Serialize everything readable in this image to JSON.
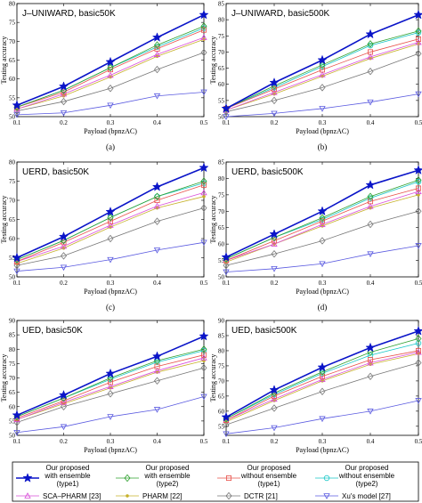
{
  "chart_data": {
    "type": "line",
    "x": [
      0.1,
      0.2,
      0.3,
      0.4,
      0.5
    ],
    "xlabel": "Payload (bpnzAC)",
    "ylabel": "Testing accuracy",
    "xticks": [
      "0.1",
      "0.2",
      "0.3",
      "0.4",
      "0.5"
    ],
    "series_styles": [
      {
        "key": "ours_ens1",
        "color": "#0a14c8",
        "marker": "star",
        "lw": 1.6
      },
      {
        "key": "ours_ens2",
        "color": "#2ea02e",
        "marker": "diamond",
        "lw": 0.8
      },
      {
        "key": "ours_noens1",
        "color": "#e8504a",
        "marker": "square",
        "lw": 0.8
      },
      {
        "key": "ours_noens2",
        "color": "#17c7c7",
        "marker": "circle",
        "lw": 0.8
      },
      {
        "key": "sca_pharm",
        "color": "#d94fd9",
        "marker": "triangle-up",
        "lw": 0.8
      },
      {
        "key": "pharm",
        "color": "#c7b12a",
        "marker": "dot",
        "lw": 0.8
      },
      {
        "key": "dctr",
        "color": "#777777",
        "marker": "diamond",
        "lw": 0.8
      },
      {
        "key": "xu",
        "color": "#5a5ae0",
        "marker": "triangle-down",
        "lw": 0.8
      }
    ],
    "panels": [
      {
        "title": "J–UNIWARD, basic50K",
        "caption": "(a)",
        "ylim": [
          50,
          80
        ],
        "yticks": [
          "50",
          "55",
          "60",
          "65",
          "70",
          "75",
          "80"
        ],
        "values": [
          [
            53,
            58,
            64.5,
            71,
            77
          ],
          [
            52.5,
            57,
            63,
            69,
            74
          ],
          [
            52.5,
            56.5,
            62.5,
            68,
            73
          ],
          [
            52.5,
            57,
            63,
            68.5,
            73.5
          ],
          [
            52,
            56,
            61,
            66.5,
            71
          ],
          [
            52,
            55.5,
            60.5,
            66,
            70.5
          ],
          [
            51.5,
            54,
            57.5,
            62.5,
            67
          ],
          [
            50.5,
            51,
            53,
            55.5,
            56.5
          ]
        ]
      },
      {
        "title": "J–UNIWARD, basic500K",
        "caption": "(b)",
        "ylim": [
          50,
          85
        ],
        "yticks": [
          "50",
          "55",
          "60",
          "65",
          "70",
          "75",
          "80",
          "85"
        ],
        "values": [
          [
            52.5,
            60.5,
            67.5,
            75.5,
            81.5
          ],
          [
            52.5,
            59.5,
            66,
            72.5,
            76.5
          ],
          [
            52.5,
            58.5,
            64.5,
            70,
            74
          ],
          [
            52.5,
            59,
            65.5,
            72,
            76
          ],
          [
            52,
            57.5,
            63,
            68.5,
            73
          ],
          [
            52,
            57,
            62.5,
            68,
            72.5
          ],
          [
            51.5,
            55,
            59,
            64,
            69.5
          ],
          [
            50,
            51,
            52.5,
            54.5,
            57
          ]
        ]
      },
      {
        "title": "UERD, basic50K",
        "caption": "(c)",
        "ylim": [
          50,
          80
        ],
        "yticks": [
          "50",
          "55",
          "60",
          "65",
          "70",
          "75",
          "80"
        ],
        "values": [
          [
            55,
            60.5,
            67,
            73.5,
            78.5
          ],
          [
            54.5,
            59.5,
            65.5,
            71,
            75
          ],
          [
            54,
            59,
            64.5,
            70,
            74
          ],
          [
            54.5,
            59.5,
            65.5,
            71,
            74.5
          ],
          [
            54,
            58,
            63.5,
            68.5,
            72
          ],
          [
            53.5,
            57.5,
            63,
            68,
            71
          ],
          [
            53,
            55.5,
            60,
            64.5,
            68
          ],
          [
            51.5,
            52.5,
            54.5,
            57,
            59
          ]
        ]
      },
      {
        "title": "UERD, basic500K",
        "caption": "(d)",
        "ylim": [
          50,
          85
        ],
        "yticks": [
          "50",
          "55",
          "60",
          "65",
          "70",
          "75",
          "80",
          "85"
        ],
        "values": [
          [
            56,
            63,
            70,
            78,
            82.5
          ],
          [
            55.5,
            62,
            68,
            74.5,
            79.5
          ],
          [
            55,
            61,
            67,
            73,
            77
          ],
          [
            55.5,
            62,
            67.5,
            74,
            79
          ],
          [
            55,
            60,
            66,
            71.5,
            76
          ],
          [
            54.5,
            60,
            65.5,
            71,
            75
          ],
          [
            53.5,
            57,
            61,
            66,
            70
          ],
          [
            51.5,
            52.5,
            54,
            57,
            59.5
          ]
        ]
      },
      {
        "title": "UED, basic50K",
        "caption": "(e)",
        "ylim": [
          50,
          90
        ],
        "yticks": [
          "50",
          "55",
          "60",
          "65",
          "70",
          "75",
          "80",
          "85",
          "90"
        ],
        "values": [
          [
            57,
            64,
            71.5,
            77.5,
            84.5
          ],
          [
            56.5,
            63,
            70,
            76,
            80
          ],
          [
            56,
            62,
            68.5,
            74,
            78
          ],
          [
            56.5,
            63,
            69.5,
            75.5,
            79.5
          ],
          [
            55.5,
            61.5,
            67,
            72.5,
            77
          ],
          [
            55.5,
            61,
            66.5,
            72,
            76
          ],
          [
            54.5,
            60,
            64.5,
            69,
            73.5
          ],
          [
            51,
            53,
            56.5,
            59,
            63.5
          ]
        ]
      },
      {
        "title": "UED, basic500K",
        "caption": "(f)",
        "ylim": [
          52,
          90
        ],
        "yticks": [
          "55",
          "60",
          "65",
          "70",
          "75",
          "80",
          "85",
          "90"
        ],
        "values": [
          [
            58,
            67,
            74.5,
            81,
            86.5
          ],
          [
            57.5,
            66,
            73,
            79.5,
            84
          ],
          [
            57,
            65,
            71.5,
            77,
            80
          ],
          [
            57.5,
            65.5,
            72.5,
            78.5,
            82.5
          ],
          [
            57,
            64,
            70.5,
            76,
            79.5
          ],
          [
            56.5,
            63.5,
            70,
            75.5,
            79
          ],
          [
            55.5,
            61,
            66.5,
            71.5,
            76
          ],
          [
            52.5,
            54.5,
            57.5,
            60,
            63.5
          ]
        ]
      }
    ],
    "legend": {
      "placement": "bottom",
      "entries": [
        [
          "Our proposed",
          "with ensemble",
          "(type1)"
        ],
        [
          "Our proposed",
          "with ensemble",
          "(type2)"
        ],
        [
          "Our proposed",
          "without ensemble",
          "(type1)"
        ],
        [
          "Our proposed",
          "without ensemble",
          "(type2)"
        ],
        [
          "SCA–PHARM [23]"
        ],
        [
          "PHARM [22]"
        ],
        [
          "DCTR [21]"
        ],
        [
          "Xu's model [27]"
        ]
      ]
    }
  }
}
